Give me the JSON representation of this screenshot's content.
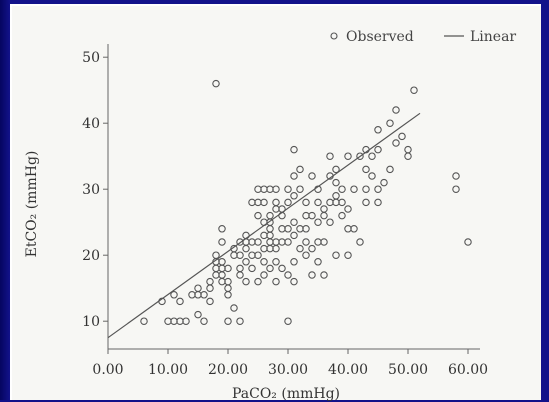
{
  "chart_data": {
    "type": "scatter",
    "xlabel": "PaCO₂ (mmHg)",
    "ylabel": "EtCO₂ (mmHg)",
    "xlim": [
      0,
      62
    ],
    "ylim": [
      7,
      52
    ],
    "x_ticks": [
      "0.00",
      "10.00",
      "20.00",
      "30.00",
      "40.00",
      "50.00",
      "60.00"
    ],
    "y_ticks": [
      "10",
      "20",
      "30",
      "40",
      "50"
    ],
    "legend": {
      "position": "top-right",
      "observed_label": "Observed",
      "linear_label": "Linear"
    },
    "grid": false,
    "series": [
      {
        "name": "Observed",
        "kind": "points",
        "color": "#555555",
        "points": [
          [
            6,
            10
          ],
          [
            10,
            10
          ],
          [
            11,
            10
          ],
          [
            12,
            10
          ],
          [
            13,
            10
          ],
          [
            15,
            11
          ],
          [
            16,
            10
          ],
          [
            20,
            10
          ],
          [
            22,
            10
          ],
          [
            30,
            10
          ],
          [
            9,
            13
          ],
          [
            11,
            14
          ],
          [
            12,
            13
          ],
          [
            14,
            14
          ],
          [
            15,
            14
          ],
          [
            15,
            15
          ],
          [
            16,
            14
          ],
          [
            17,
            15
          ],
          [
            17,
            16
          ],
          [
            18,
            17
          ],
          [
            18,
            18
          ],
          [
            18,
            19
          ],
          [
            18,
            20
          ],
          [
            19,
            16
          ],
          [
            19,
            17
          ],
          [
            19,
            18
          ],
          [
            19,
            19
          ],
          [
            19,
            22
          ],
          [
            19,
            24
          ],
          [
            18,
            46
          ],
          [
            20,
            15
          ],
          [
            20,
            16
          ],
          [
            20,
            18
          ],
          [
            21,
            20
          ],
          [
            21,
            21
          ],
          [
            21,
            12
          ],
          [
            22,
            18
          ],
          [
            22,
            20
          ],
          [
            22,
            22
          ],
          [
            23,
            16
          ],
          [
            23,
            19
          ],
          [
            23,
            21
          ],
          [
            23,
            22
          ],
          [
            23,
            23
          ],
          [
            24,
            18
          ],
          [
            24,
            20
          ],
          [
            24,
            22
          ],
          [
            24,
            28
          ],
          [
            25,
            16
          ],
          [
            25,
            20
          ],
          [
            25,
            22
          ],
          [
            25,
            28
          ],
          [
            25,
            30
          ],
          [
            26,
            17
          ],
          [
            26,
            19
          ],
          [
            26,
            21
          ],
          [
            26,
            25
          ],
          [
            26,
            28
          ],
          [
            26,
            30
          ],
          [
            27,
            18
          ],
          [
            27,
            21
          ],
          [
            27,
            22
          ],
          [
            27,
            23
          ],
          [
            27,
            24
          ],
          [
            27,
            25
          ],
          [
            27,
            26
          ],
          [
            27,
            30
          ],
          [
            28,
            16
          ],
          [
            28,
            19
          ],
          [
            28,
            21
          ],
          [
            28,
            22
          ],
          [
            28,
            27
          ],
          [
            28,
            28
          ],
          [
            28,
            30
          ],
          [
            29,
            18
          ],
          [
            29,
            22
          ],
          [
            29,
            24
          ],
          [
            29,
            26
          ],
          [
            30,
            17
          ],
          [
            30,
            22
          ],
          [
            30,
            24
          ],
          [
            30,
            28
          ],
          [
            30,
            30
          ],
          [
            31,
            16
          ],
          [
            31,
            19
          ],
          [
            31,
            23
          ],
          [
            31,
            25
          ],
          [
            31,
            29
          ],
          [
            31,
            32
          ],
          [
            31,
            36
          ],
          [
            32,
            21
          ],
          [
            32,
            24
          ],
          [
            32,
            30
          ],
          [
            32,
            33
          ],
          [
            33,
            20
          ],
          [
            33,
            22
          ],
          [
            33,
            24
          ],
          [
            33,
            26
          ],
          [
            33,
            28
          ],
          [
            34,
            17
          ],
          [
            34,
            21
          ],
          [
            34,
            26
          ],
          [
            34,
            32
          ],
          [
            35,
            19
          ],
          [
            35,
            22
          ],
          [
            35,
            25
          ],
          [
            35,
            28
          ],
          [
            35,
            30
          ],
          [
            36,
            17
          ],
          [
            36,
            22
          ],
          [
            36,
            26
          ],
          [
            36,
            27
          ],
          [
            37,
            25
          ],
          [
            37,
            28
          ],
          [
            37,
            32
          ],
          [
            37,
            35
          ],
          [
            38,
            20
          ],
          [
            38,
            28
          ],
          [
            38,
            29
          ],
          [
            38,
            31
          ],
          [
            39,
            26
          ],
          [
            39,
            28
          ],
          [
            39,
            30
          ],
          [
            40,
            20
          ],
          [
            40,
            24
          ],
          [
            40,
            27
          ],
          [
            40,
            35
          ],
          [
            41,
            24
          ],
          [
            41,
            30
          ],
          [
            42,
            22
          ],
          [
            42,
            35
          ],
          [
            43,
            28
          ],
          [
            43,
            30
          ],
          [
            43,
            33
          ],
          [
            43,
            36
          ],
          [
            44,
            32
          ],
          [
            44,
            35
          ],
          [
            45,
            28
          ],
          [
            45,
            30
          ],
          [
            45,
            36
          ],
          [
            45,
            39
          ],
          [
            46,
            31
          ],
          [
            47,
            33
          ],
          [
            47,
            40
          ],
          [
            48,
            37
          ],
          [
            48,
            42
          ],
          [
            49,
            38
          ],
          [
            50,
            35
          ],
          [
            50,
            36
          ],
          [
            51,
            45
          ],
          [
            58,
            30
          ],
          [
            58,
            32
          ],
          [
            60,
            22
          ],
          [
            25,
            26
          ],
          [
            29,
            27
          ],
          [
            38,
            33
          ],
          [
            20,
            14
          ],
          [
            22,
            17
          ],
          [
            17,
            13
          ],
          [
            26,
            23
          ]
        ]
      },
      {
        "name": "Linear",
        "kind": "line",
        "color": "#555555",
        "points": [
          [
            0,
            7.5
          ],
          [
            52,
            41.5
          ]
        ]
      }
    ]
  },
  "colors": {
    "background": "#12128a",
    "panel": "#f7f7f4",
    "ink": "#333333",
    "marker": "#555555"
  }
}
